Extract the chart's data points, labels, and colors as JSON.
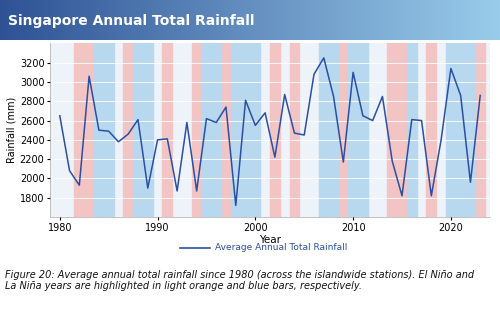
{
  "title": "Singapore Annual Total Rainfall",
  "xlabel": "Year",
  "ylabel": "Rainfall (mm)",
  "legend_label": "Average Annual Total Rainfall",
  "caption": "Figure 20: Average annual total rainfall since 1980 (across the islandwide stations). El Niño and\nLa Niña years are highlighted in light orange and blue bars, respectively.",
  "years": [
    1980,
    1981,
    1982,
    1983,
    1984,
    1985,
    1986,
    1987,
    1988,
    1989,
    1990,
    1991,
    1992,
    1993,
    1994,
    1995,
    1996,
    1997,
    1998,
    1999,
    2000,
    2001,
    2002,
    2003,
    2004,
    2005,
    2006,
    2007,
    2008,
    2009,
    2010,
    2011,
    2012,
    2013,
    2014,
    2015,
    2016,
    2017,
    2018,
    2019,
    2020,
    2021,
    2022,
    2023
  ],
  "rainfall": [
    2650,
    2080,
    1930,
    3060,
    2500,
    2490,
    2380,
    2460,
    2610,
    1900,
    2400,
    2410,
    1870,
    2580,
    1870,
    2620,
    2580,
    2740,
    1720,
    2810,
    2550,
    2680,
    2220,
    2870,
    2470,
    2450,
    3080,
    3250,
    2850,
    2170,
    3100,
    2650,
    2600,
    2850,
    2180,
    1820,
    2610,
    2600,
    1820,
    2400,
    3140,
    2860,
    1960,
    2860
  ],
  "el_nino_years": [
    1982,
    1983,
    1987,
    1991,
    1994,
    1997,
    2002,
    2004,
    2009,
    2014,
    2015,
    2018,
    2023
  ],
  "la_nina_years": [
    1984,
    1985,
    1988,
    1989,
    1995,
    1996,
    1998,
    1999,
    2000,
    2007,
    2008,
    2010,
    2011,
    2016,
    2020,
    2021,
    2022
  ],
  "el_nino_color": "#f2c4c4",
  "la_nina_color": "#b8d8f0",
  "line_color": "#2b4fa3",
  "ylim": [
    1600,
    3400
  ],
  "yticks": [
    1800,
    2000,
    2200,
    2400,
    2600,
    2800,
    3000,
    3200
  ],
  "xlim": [
    1979,
    2024
  ],
  "title_color": "white",
  "title_fontsize": 10,
  "axis_fontsize": 7,
  "caption_fontsize": 7,
  "plot_bg": "#eef3fa"
}
